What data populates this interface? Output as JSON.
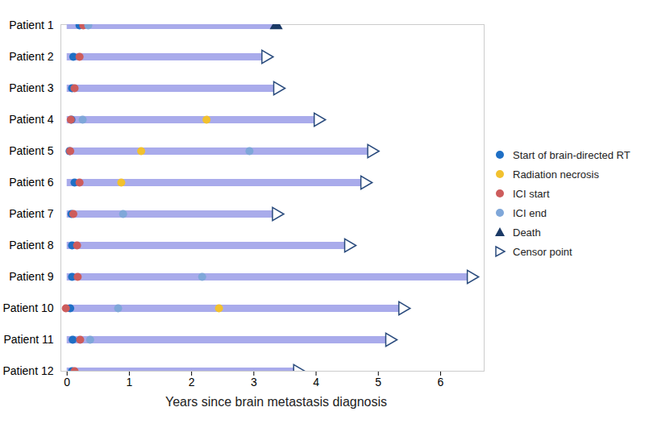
{
  "chart_data": {
    "type": "swimmer",
    "xlabel": "Years since brain metastasis diagnosis",
    "xlim": [
      -0.1,
      6.7
    ],
    "xticks": [
      0,
      1,
      2,
      3,
      4,
      5,
      6
    ],
    "grid": false,
    "legend": "right",
    "categories": [
      "Patient 1",
      "Patient 2",
      "Patient 3",
      "Patient 4",
      "Patient 5",
      "Patient 6",
      "Patient 7",
      "Patient 8",
      "Patient 9",
      "Patient 10",
      "Patient 11",
      "Patient 12"
    ],
    "bars": {
      "color": "#a9abeb",
      "start": [
        0,
        0,
        0,
        0,
        0,
        0,
        0,
        0,
        0,
        0,
        0,
        0
      ]
    },
    "series": [
      {
        "name": "Start of brain-directed RT",
        "color": "#1f6fc5",
        "marker": "circle",
        "values": [
          0.2,
          0.1,
          0.08,
          0.07,
          0.04,
          0.12,
          0.07,
          0.08,
          0.08,
          0.05,
          0.09,
          0.08
        ]
      },
      {
        "name": "Radiation necrosis",
        "color": "#f2c12e",
        "marker": "circle",
        "values": [
          null,
          null,
          null,
          2.24,
          1.19,
          0.87,
          null,
          null,
          null,
          2.44,
          null,
          null
        ]
      },
      {
        "name": "ICI start",
        "color": "#cd5c5c",
        "marker": "circle",
        "values": [
          0.26,
          0.2,
          0.12,
          0.06,
          0.05,
          0.2,
          0.1,
          0.16,
          0.17,
          -0.02,
          0.21,
          0.12
        ]
      },
      {
        "name": "ICI end",
        "color": "#7fa7d9",
        "marker": "circle",
        "values": [
          0.34,
          null,
          null,
          0.25,
          2.93,
          null,
          0.9,
          null,
          2.17,
          0.82,
          0.37,
          null
        ]
      },
      {
        "name": "Death",
        "color": "#1b3a66",
        "marker": "triangle",
        "values": [
          3.36,
          null,
          null,
          null,
          null,
          null,
          null,
          null,
          null,
          null,
          null,
          null
        ]
      },
      {
        "name": "Censor point",
        "color": "#2b4c7e",
        "marker": "open-triangle",
        "values": [
          null,
          3.19,
          3.38,
          4.03,
          4.89,
          4.78,
          3.36,
          4.52,
          6.49,
          5.39,
          5.18,
          3.7
        ]
      }
    ]
  }
}
